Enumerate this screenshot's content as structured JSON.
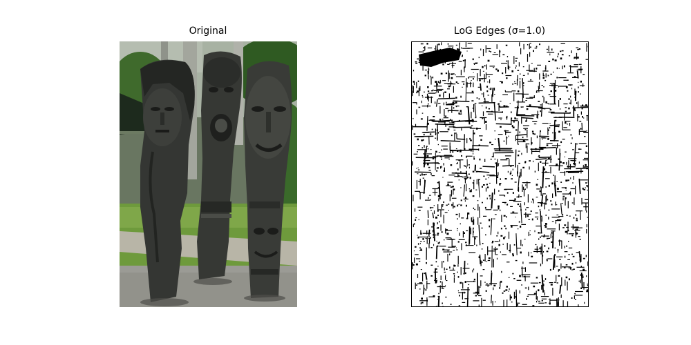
{
  "figure": {
    "left_panel": {
      "title": "Original"
    },
    "right_panel": {
      "title": "LoG Edges (σ=1.0)"
    }
  },
  "colors": {
    "background": "#ffffff",
    "edge_ink": "#000000",
    "stone": "#2f312e",
    "stone_dark": "#1c1e1c",
    "foliage": "#4f7a35",
    "lawn": "#78a343",
    "gravel": "#9a9a94",
    "path": "#b7b4a6",
    "trunk": "#9c9f98",
    "sky": "#dfe5df"
  },
  "icons": {
    "left_image": "carved-wooden-statues-photo",
    "right_image": "log-edge-map-image"
  }
}
